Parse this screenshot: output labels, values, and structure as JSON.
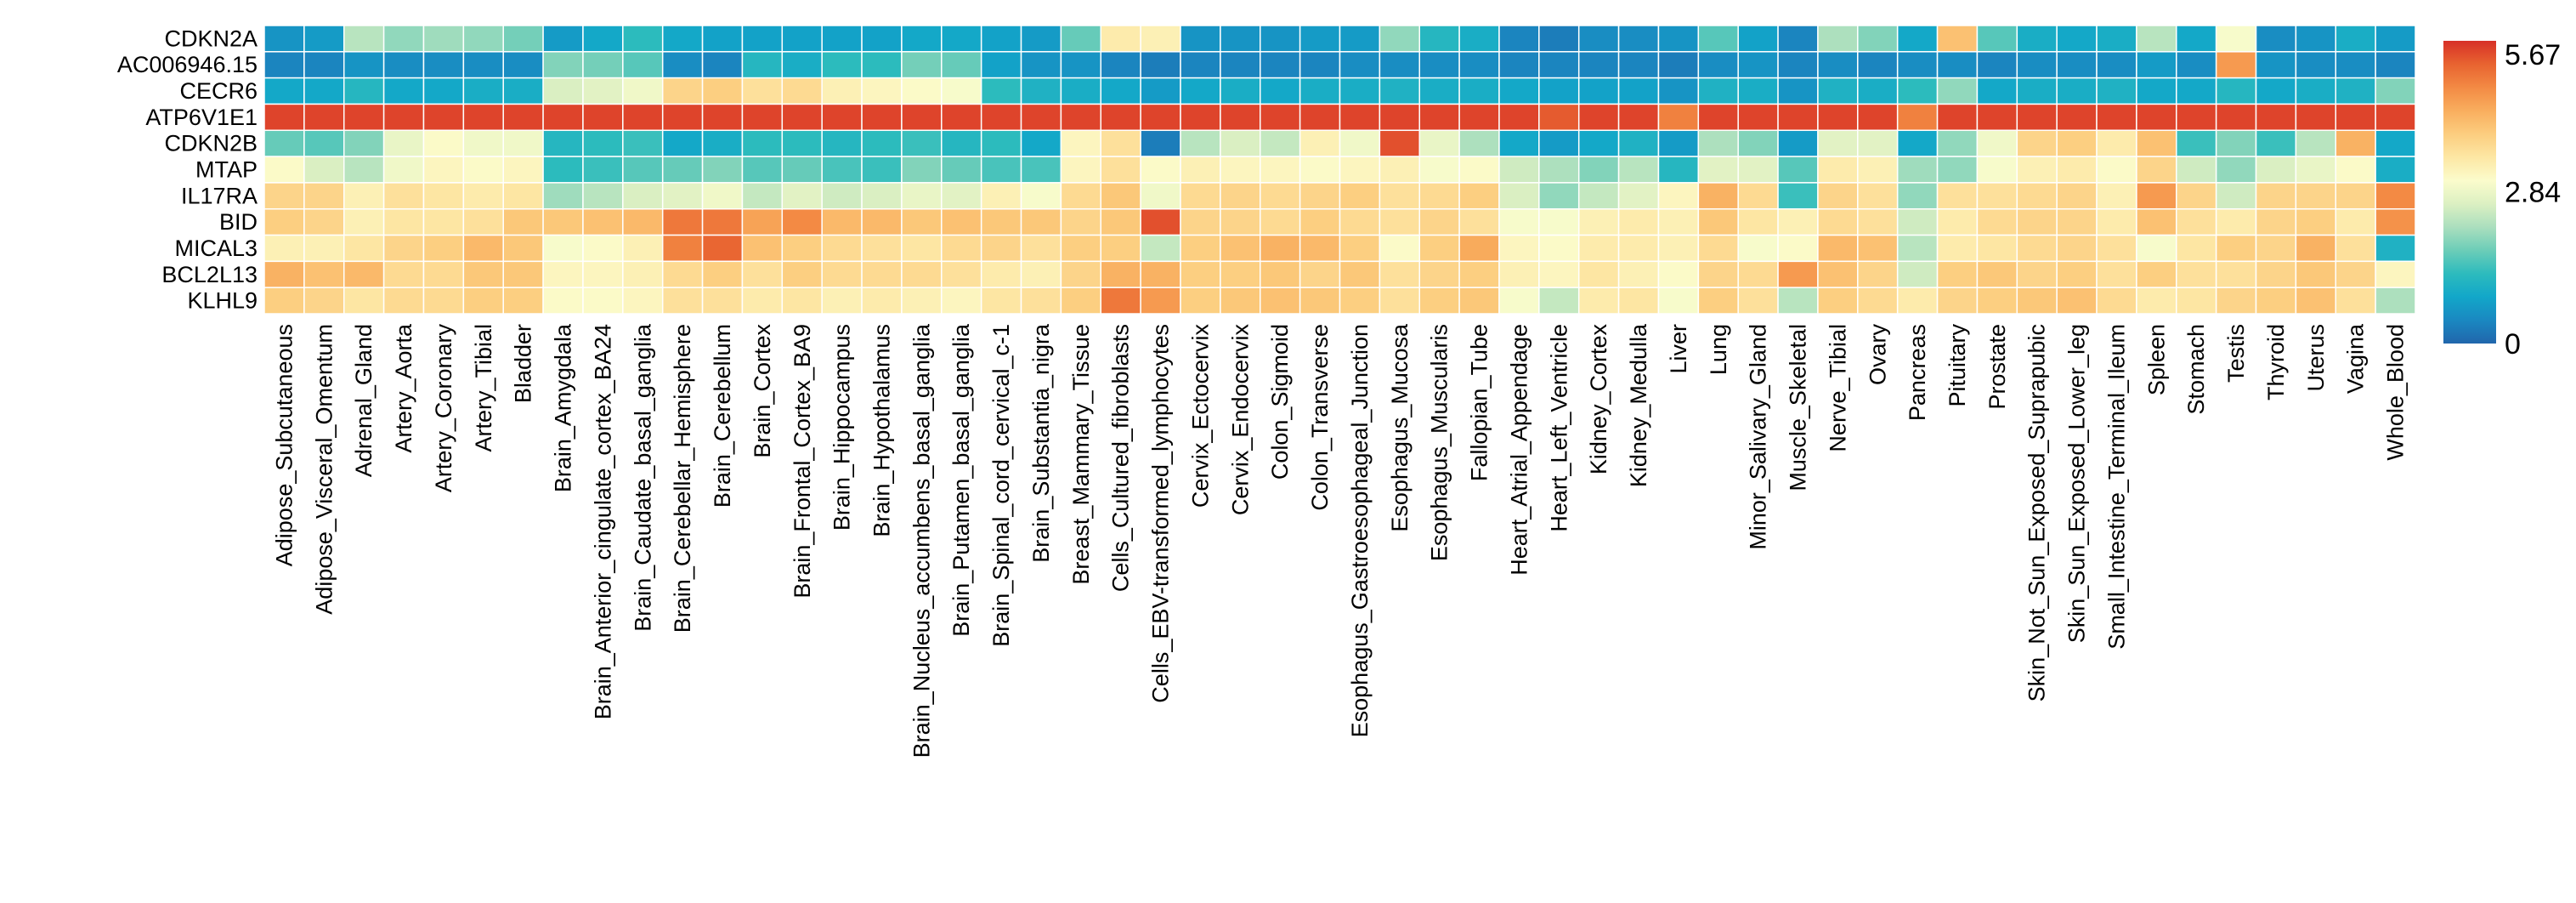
{
  "chart_data": {
    "type": "heatmap",
    "title": "",
    "xlabel": "",
    "ylabel": "",
    "colorbar": {
      "min": 0,
      "max": 5.67,
      "tick_labels": [
        "5.67",
        "2.84",
        "0"
      ],
      "colors": [
        "#2166ac",
        "#1a88c1",
        "#12a7c9",
        "#2dbbbd",
        "#6ccdb8",
        "#abdfbe",
        "#dcf0c2",
        "#fbfccc",
        "#fde7a4",
        "#fccd7f",
        "#f9ae5e",
        "#f38a44",
        "#e86330",
        "#d73027"
      ]
    },
    "rows": [
      "CDKN2A",
      "AC006946.15",
      "CECR6",
      "ATP6V1E1",
      "CDKN2B",
      "MTAP",
      "IL17RA",
      "BID",
      "MICAL3",
      "BCL2L13",
      "KLHL9"
    ],
    "columns": [
      "Adipose_Subcutaneous",
      "Adipose_Visceral_Omentum",
      "Adrenal_Gland",
      "Artery_Aorta",
      "Artery_Coronary",
      "Artery_Tibial",
      "Bladder",
      "Brain_Amygdala",
      "Brain_Anterior_cingulate_cortex_BA24",
      "Brain_Caudate_basal_ganglia",
      "Brain_Cerebellar_Hemisphere",
      "Brain_Cerebellum",
      "Brain_Cortex",
      "Brain_Frontal_Cortex_BA9",
      "Brain_Hippocampus",
      "Brain_Hypothalamus",
      "Brain_Nucleus_accumbens_basal_ganglia",
      "Brain_Putamen_basal_ganglia",
      "Brain_Spinal_cord_cervical_c-1",
      "Brain_Substantia_nigra",
      "Breast_Mammary_Tissue",
      "Cells_Cultured_fibroblasts",
      "Cells_EBV-transformed_lymphocytes",
      "Cervix_Ectocervix",
      "Cervix_Endocervix",
      "Colon_Sigmoid",
      "Colon_Transverse",
      "Esophagus_Gastroesophageal_Junction",
      "Esophagus_Mucosa",
      "Esophagus_Muscularis",
      "Fallopian_Tube",
      "Heart_Atrial_Appendage",
      "Heart_Left_Ventricle",
      "Kidney_Cortex",
      "Kidney_Medulla",
      "Liver",
      "Lung",
      "Minor_Salivary_Gland",
      "Muscle_Skeletal",
      "Nerve_Tibial",
      "Ovary",
      "Pancreas",
      "Pituitary",
      "Prostate",
      "Skin_Not_Sun_Exposed_Suprapubic",
      "Skin_Sun_Exposed_Lower_leg",
      "Small_Intestine_Terminal_Ileum",
      "Spleen",
      "Stomach",
      "Testis",
      "Thyroid",
      "Uterus",
      "Vagina",
      "Whole_Blood"
    ],
    "values": [
      [
        0.6,
        0.7,
        2.3,
        2.0,
        2.1,
        2.0,
        1.8,
        0.7,
        0.9,
        1.3,
        0.9,
        0.8,
        0.8,
        0.8,
        0.8,
        0.8,
        0.9,
        0.9,
        0.8,
        0.7,
        1.7,
        3.4,
        3.3,
        0.6,
        0.6,
        0.6,
        0.7,
        0.7,
        2.0,
        1.2,
        1.0,
        0.4,
        0.3,
        0.5,
        0.5,
        0.6,
        1.6,
        0.8,
        0.4,
        2.2,
        1.9,
        0.9,
        4.1,
        1.6,
        1.0,
        0.9,
        1.0,
        2.3,
        0.9,
        3.0,
        0.5,
        0.6,
        1.0,
        0.7
      ],
      [
        0.4,
        0.4,
        0.6,
        0.5,
        0.5,
        0.5,
        0.5,
        1.9,
        1.8,
        1.6,
        0.5,
        0.4,
        1.2,
        1.0,
        1.3,
        1.3,
        1.8,
        1.7,
        0.8,
        0.6,
        0.6,
        0.4,
        0.3,
        0.4,
        0.4,
        0.4,
        0.4,
        0.5,
        0.5,
        0.5,
        0.5,
        0.4,
        0.4,
        0.4,
        0.4,
        0.3,
        0.5,
        0.6,
        0.4,
        0.5,
        0.4,
        0.5,
        0.5,
        0.4,
        0.5,
        0.5,
        0.5,
        0.7,
        0.5,
        4.6,
        0.6,
        0.5,
        0.5,
        0.4
      ],
      [
        0.9,
        0.9,
        1.2,
        0.9,
        0.9,
        1.0,
        1.0,
        2.6,
        2.7,
        2.9,
        3.8,
        3.9,
        3.6,
        3.7,
        3.3,
        3.2,
        3.1,
        3.0,
        1.3,
        1.1,
        1.0,
        0.9,
        0.7,
        0.9,
        1.0,
        0.9,
        1.0,
        1.0,
        1.1,
        1.0,
        1.0,
        0.9,
        0.8,
        0.8,
        0.8,
        0.6,
        1.1,
        1.0,
        0.6,
        1.1,
        1.0,
        1.3,
        2.0,
        0.9,
        1.0,
        1.0,
        1.1,
        0.9,
        0.9,
        1.2,
        0.9,
        1.0,
        1.1,
        1.9
      ],
      [
        5.5,
        5.5,
        5.5,
        5.5,
        5.5,
        5.5,
        5.5,
        5.5,
        5.5,
        5.5,
        5.5,
        5.5,
        5.5,
        5.5,
        5.5,
        5.5,
        5.5,
        5.5,
        5.5,
        5.5,
        5.5,
        5.5,
        5.5,
        5.5,
        5.5,
        5.5,
        5.5,
        5.5,
        5.5,
        5.5,
        5.5,
        5.5,
        5.3,
        5.5,
        5.5,
        4.9,
        5.5,
        5.5,
        5.5,
        5.5,
        5.5,
        4.9,
        5.5,
        5.5,
        5.5,
        5.5,
        5.5,
        5.5,
        5.5,
        5.5,
        5.5,
        5.5,
        5.5,
        5.5
      ],
      [
        1.7,
        1.6,
        1.9,
        2.8,
        3.1,
        2.9,
        2.9,
        1.2,
        1.3,
        1.4,
        0.9,
        1.0,
        1.3,
        1.3,
        1.2,
        1.3,
        1.4,
        1.2,
        1.3,
        0.9,
        3.2,
        3.6,
        0.3,
        2.3,
        2.6,
        2.4,
        3.3,
        2.9,
        5.4,
        2.8,
        2.2,
        0.9,
        0.7,
        0.9,
        1.1,
        0.7,
        2.2,
        1.9,
        0.7,
        2.7,
        2.7,
        0.9,
        2.0,
        2.9,
        3.8,
        3.9,
        3.4,
        4.1,
        1.4,
        1.9,
        1.4,
        2.3,
        4.3,
        0.9
      ],
      [
        3.1,
        2.6,
        2.3,
        2.9,
        3.2,
        3.1,
        3.2,
        1.3,
        1.4,
        1.6,
        1.7,
        1.9,
        1.6,
        1.7,
        1.5,
        1.4,
        1.9,
        1.7,
        1.5,
        1.5,
        3.2,
        3.6,
        3.1,
        3.3,
        3.2,
        3.2,
        3.1,
        3.2,
        3.3,
        3.0,
        3.1,
        2.5,
        2.2,
        1.9,
        2.3,
        1.2,
        2.7,
        2.7,
        1.6,
        3.4,
        3.3,
        2.1,
        2.0,
        3.0,
        3.3,
        3.4,
        3.1,
        3.8,
        2.5,
        2.0,
        2.6,
        2.8,
        3.1,
        1.0
      ],
      [
        3.8,
        3.8,
        3.3,
        3.6,
        3.5,
        3.4,
        3.5,
        2.1,
        2.3,
        2.6,
        2.7,
        2.9,
        2.4,
        2.7,
        2.5,
        2.6,
        2.8,
        2.7,
        3.3,
        3.0,
        3.7,
        4.0,
        2.9,
        3.7,
        3.8,
        3.7,
        3.8,
        3.9,
        3.6,
        3.7,
        3.9,
        2.6,
        2.0,
        2.4,
        2.7,
        3.2,
        4.3,
        3.7,
        1.4,
        3.8,
        3.6,
        2.0,
        3.6,
        3.6,
        3.7,
        3.8,
        3.3,
        4.6,
        3.8,
        2.5,
        3.8,
        3.8,
        3.8,
        4.8
      ],
      [
        3.9,
        3.8,
        3.3,
        3.5,
        3.5,
        3.6,
        4.0,
        4.0,
        4.1,
        4.2,
        5.0,
        5.0,
        4.5,
        4.8,
        4.2,
        4.2,
        4.0,
        4.1,
        4.0,
        4.0,
        3.8,
        4.0,
        5.4,
        3.8,
        3.8,
        3.7,
        3.9,
        3.7,
        3.6,
        3.8,
        3.6,
        3.0,
        3.0,
        3.3,
        3.4,
        3.3,
        4.0,
        3.5,
        3.3,
        3.7,
        3.6,
        2.5,
        3.4,
        3.7,
        3.8,
        3.8,
        3.4,
        4.1,
        3.6,
        3.4,
        3.8,
        3.9,
        3.4,
        4.7
      ],
      [
        3.3,
        3.3,
        3.5,
        3.8,
        3.9,
        4.2,
        4.0,
        3.0,
        3.1,
        3.3,
        4.9,
        5.2,
        4.1,
        3.9,
        3.7,
        3.6,
        3.5,
        3.7,
        3.8,
        3.6,
        3.9,
        3.9,
        2.4,
        3.9,
        4.1,
        4.3,
        4.2,
        3.9,
        3.1,
        3.9,
        4.4,
        3.2,
        3.1,
        3.4,
        3.4,
        3.3,
        3.7,
        3.0,
        3.1,
        4.2,
        4.1,
        2.3,
        3.4,
        3.5,
        3.7,
        3.8,
        3.6,
        3.0,
        3.5,
        3.9,
        3.8,
        4.3,
        3.6,
        1.1
      ],
      [
        4.3,
        4.1,
        4.2,
        3.7,
        3.7,
        4.0,
        4.0,
        3.2,
        3.2,
        3.3,
        3.7,
        3.9,
        3.6,
        3.9,
        3.7,
        3.7,
        3.7,
        3.6,
        3.4,
        3.3,
        3.8,
        4.3,
        4.3,
        3.9,
        3.9,
        4.0,
        3.8,
        4.0,
        3.6,
        3.8,
        3.9,
        3.3,
        3.2,
        3.5,
        3.3,
        3.1,
        3.8,
        3.7,
        4.6,
        4.1,
        3.8,
        2.5,
        3.9,
        4.0,
        3.8,
        3.9,
        3.6,
        3.9,
        3.6,
        3.6,
        3.8,
        4.0,
        3.8,
        3.2
      ],
      [
        3.9,
        3.8,
        3.5,
        3.7,
        3.7,
        3.9,
        3.9,
        3.1,
        3.1,
        3.2,
        3.6,
        3.6,
        3.4,
        3.5,
        3.3,
        3.4,
        3.3,
        3.2,
        3.5,
        3.6,
        3.9,
        5.0,
        4.6,
        3.9,
        4.0,
        4.1,
        4.0,
        3.9,
        3.6,
        3.9,
        4.0,
        3.0,
        2.4,
        3.4,
        3.5,
        3.0,
        3.9,
        3.6,
        2.3,
        3.9,
        3.7,
        3.4,
        3.8,
        3.9,
        4.0,
        4.1,
        3.7,
        3.4,
        3.5,
        3.8,
        3.9,
        4.1,
        3.6,
        2.2
      ]
    ]
  }
}
